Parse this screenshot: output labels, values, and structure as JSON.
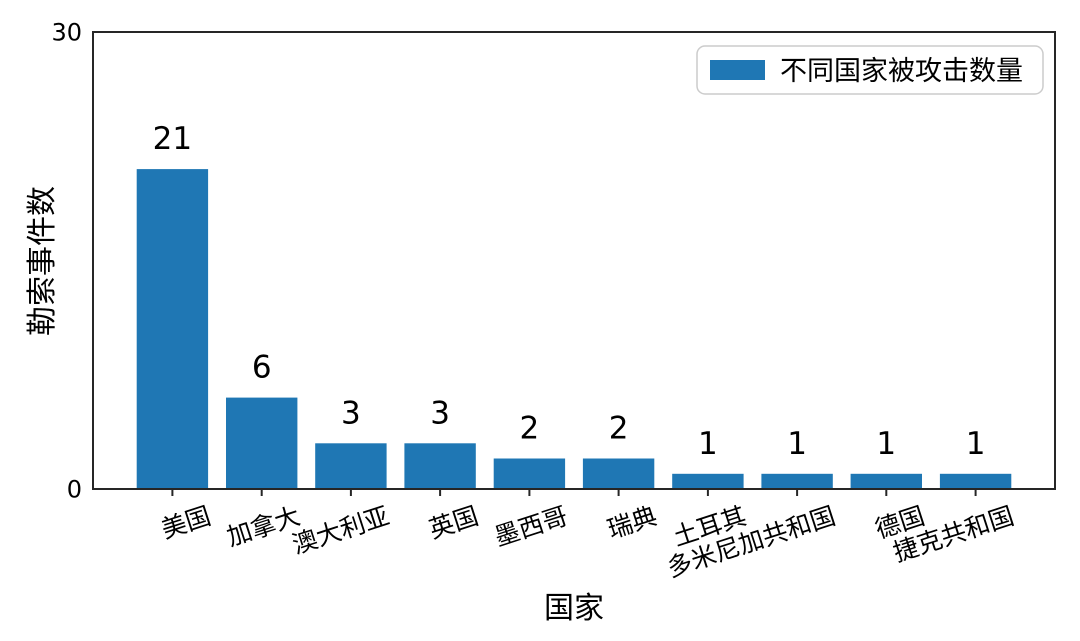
{
  "chart_data": {
    "type": "bar",
    "title": "",
    "xlabel": "国家",
    "ylabel": "勒索事件数",
    "categories": [
      "美国",
      "加拿大",
      "澳大利亚",
      "英国",
      "墨西哥",
      "瑞典",
      "土耳其",
      "多米尼加共和国",
      "德国",
      "捷克共和国"
    ],
    "values": [
      21,
      6,
      3,
      3,
      2,
      2,
      1,
      1,
      1,
      1
    ],
    "bar_value_labels": [
      "21",
      "6",
      "3",
      "3",
      "2",
      "2",
      "1",
      "1",
      "1",
      "1"
    ],
    "ylim": [
      0,
      30
    ],
    "yticks": [
      0,
      30
    ],
    "grid": false,
    "legend": {
      "position": "upper-right",
      "entries": [
        {
          "label": "不同国家被攻击数量",
          "color": "#1f77b4"
        }
      ]
    },
    "colors": {
      "bar": "#1f77b4",
      "axis": "#262626",
      "legend_border": "#cccccc",
      "background": "#ffffff"
    }
  }
}
